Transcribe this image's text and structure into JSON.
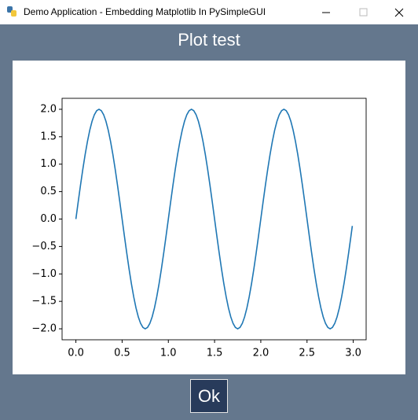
{
  "window": {
    "title": "Demo Application - Embedding Matplotlib In PySimpleGUI"
  },
  "header": "Plot test",
  "button": "Ok",
  "chart_data": {
    "type": "line",
    "color": "#1f77b4",
    "x": [
      0,
      0.025,
      0.05,
      0.075,
      0.1,
      0.125,
      0.15,
      0.175,
      0.2,
      0.225,
      0.25,
      0.275,
      0.3,
      0.325,
      0.35,
      0.375,
      0.4,
      0.425,
      0.45,
      0.475,
      0.5,
      0.525,
      0.55,
      0.575,
      0.6,
      0.625,
      0.65,
      0.675,
      0.7,
      0.725,
      0.75,
      0.775,
      0.8,
      0.825,
      0.85,
      0.875,
      0.9,
      0.925,
      0.95,
      0.975,
      1,
      1.025,
      1.05,
      1.075,
      1.1,
      1.125,
      1.15,
      1.175,
      1.2,
      1.225,
      1.25,
      1.275,
      1.3,
      1.325,
      1.35,
      1.375,
      1.4,
      1.425,
      1.45,
      1.475,
      1.5,
      1.525,
      1.55,
      1.575,
      1.6,
      1.625,
      1.65,
      1.675,
      1.7,
      1.725,
      1.75,
      1.775,
      1.8,
      1.825,
      1.85,
      1.875,
      1.9,
      1.925,
      1.95,
      1.975,
      2,
      2.025,
      2.05,
      2.075,
      2.1,
      2.125,
      2.15,
      2.175,
      2.2,
      2.225,
      2.25,
      2.275,
      2.3,
      2.325,
      2.35,
      2.375,
      2.4,
      2.425,
      2.45,
      2.475,
      2.5,
      2.525,
      2.55,
      2.575,
      2.6,
      2.625,
      2.65,
      2.675,
      2.7,
      2.725,
      2.75,
      2.775,
      2.8,
      2.825,
      2.85,
      2.875,
      2.9,
      2.925,
      2.95,
      2.975,
      2.99
    ],
    "values": [
      0,
      0.313,
      0.618,
      0.908,
      1.176,
      1.414,
      1.618,
      1.782,
      1.902,
      1.975,
      2,
      1.975,
      1.902,
      1.782,
      1.618,
      1.414,
      1.176,
      0.908,
      0.618,
      0.313,
      0,
      -0.313,
      -0.618,
      -0.908,
      -1.176,
      -1.414,
      -1.618,
      -1.782,
      -1.902,
      -1.975,
      -2,
      -1.975,
      -1.902,
      -1.782,
      -1.618,
      -1.414,
      -1.176,
      -0.908,
      -0.618,
      -0.313,
      0,
      0.313,
      0.618,
      0.908,
      1.176,
      1.414,
      1.618,
      1.782,
      1.902,
      1.975,
      2,
      1.975,
      1.902,
      1.782,
      1.618,
      1.414,
      1.176,
      0.908,
      0.618,
      0.313,
      0,
      -0.313,
      -0.618,
      -0.908,
      -1.176,
      -1.414,
      -1.618,
      -1.782,
      -1.902,
      -1.975,
      -2,
      -1.975,
      -1.902,
      -1.782,
      -1.618,
      -1.414,
      -1.176,
      -0.908,
      -0.618,
      -0.313,
      0,
      0.313,
      0.618,
      0.908,
      1.176,
      1.414,
      1.618,
      1.782,
      1.902,
      1.975,
      2,
      1.975,
      1.902,
      1.782,
      1.618,
      1.414,
      1.176,
      0.908,
      0.618,
      0.313,
      0,
      -0.313,
      -0.618,
      -0.908,
      -1.176,
      -1.414,
      -1.618,
      -1.782,
      -1.902,
      -1.975,
      -2,
      -1.975,
      -1.902,
      -1.782,
      -1.618,
      -1.414,
      -1.176,
      -0.908,
      -0.618,
      -0.313,
      -0.126
    ],
    "xlim": [
      -0.1495,
      3.1395
    ],
    "ylim": [
      -2.2,
      2.2
    ],
    "xticks": [
      {
        "value": 0,
        "label": "0.0"
      },
      {
        "value": 0.5,
        "label": "0.5"
      },
      {
        "value": 1,
        "label": "1.0"
      },
      {
        "value": 1.5,
        "label": "1.5"
      },
      {
        "value": 2,
        "label": "2.0"
      },
      {
        "value": 2.5,
        "label": "2.5"
      },
      {
        "value": 3,
        "label": "3.0"
      }
    ],
    "yticks": [
      {
        "value": -2,
        "label": "−2.0"
      },
      {
        "value": -1.5,
        "label": "−1.5"
      },
      {
        "value": -1,
        "label": "−1.0"
      },
      {
        "value": -0.5,
        "label": "−0.5"
      },
      {
        "value": 0,
        "label": "0.0"
      },
      {
        "value": 0.5,
        "label": "0.5"
      },
      {
        "value": 1,
        "label": "1.0"
      },
      {
        "value": 1.5,
        "label": "1.5"
      },
      {
        "value": 2,
        "label": "2.0"
      }
    ]
  }
}
